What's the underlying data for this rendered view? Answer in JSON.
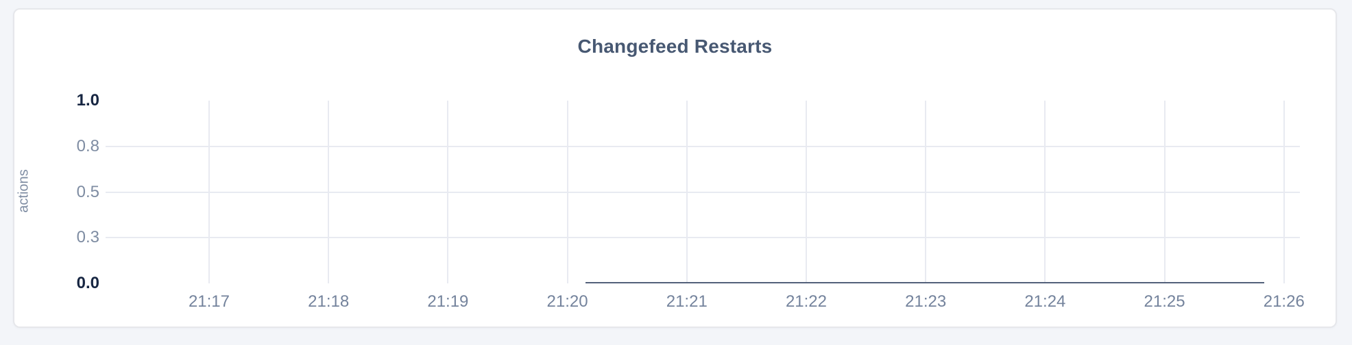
{
  "colors": {
    "page_background": "#f3f5f9",
    "card_background": "#ffffff",
    "card_border": "#e6e7eb",
    "title_text": "#475872",
    "axis_text": "#7e8ca2",
    "axis_text_emphasis": "#172642",
    "gridline": "#e8eaf1",
    "series_line": "#52607a"
  },
  "chart_data": {
    "type": "line",
    "title": "Changefeed Restarts",
    "xlabel": "",
    "ylabel": "actions",
    "grid": "on",
    "legend": "none",
    "x_axis": {
      "domain": [
        "21:16:08",
        "21:26:08"
      ],
      "tick_labels": [
        "21:17",
        "21:18",
        "21:19",
        "21:20",
        "21:21",
        "21:22",
        "21:23",
        "21:24",
        "21:25",
        "21:26"
      ]
    },
    "y_axis": {
      "domain": [
        0,
        1
      ],
      "ticks": [
        {
          "label": "1.0",
          "value": 1,
          "emphasis": true,
          "gridline": false
        },
        {
          "label": "0.8",
          "value": 0.75,
          "emphasis": false,
          "gridline": true
        },
        {
          "label": "0.5",
          "value": 0.5,
          "emphasis": false,
          "gridline": true
        },
        {
          "label": "0.3",
          "value": 0.25,
          "emphasis": false,
          "gridline": true
        },
        {
          "label": "0.0",
          "value": 0,
          "emphasis": true,
          "gridline": false
        }
      ]
    },
    "series": [
      {
        "name": "changefeed-restarts",
        "color": "#52607a",
        "points": [
          {
            "t": "21:20:09",
            "y": 0
          },
          {
            "t": "21:25:50",
            "y": 0
          }
        ]
      }
    ]
  }
}
